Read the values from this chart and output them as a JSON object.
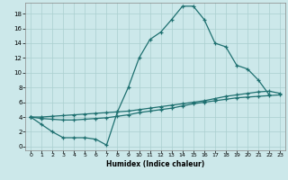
{
  "xlabel": "Humidex (Indice chaleur)",
  "bg_color": "#cce8ea",
  "line_color": "#1e7070",
  "grid_color": "#aacfcf",
  "xlim": [
    -0.5,
    23.5
  ],
  "ylim": [
    -0.5,
    19.5
  ],
  "xticks": [
    0,
    1,
    2,
    3,
    4,
    5,
    6,
    7,
    8,
    9,
    10,
    11,
    12,
    13,
    14,
    15,
    16,
    17,
    18,
    19,
    20,
    21,
    22,
    23
  ],
  "yticks": [
    0,
    2,
    4,
    6,
    8,
    10,
    12,
    14,
    16,
    18
  ],
  "curve1_x": [
    0,
    1,
    2,
    3,
    4,
    5,
    6,
    7,
    8,
    9,
    10,
    11,
    12,
    13,
    14,
    15,
    16,
    17,
    18,
    19,
    20,
    21,
    22
  ],
  "curve1_y": [
    4,
    3,
    2,
    1.2,
    1.2,
    1.2,
    1.0,
    0.2,
    4.7,
    8.0,
    12.0,
    14.5,
    15.5,
    17.2,
    19.0,
    19.0,
    17.2,
    14.0,
    13.5,
    11.0,
    10.5,
    9.0,
    7.0
  ],
  "curve2_x": [
    0,
    1,
    2,
    3,
    4,
    5,
    6,
    7,
    8,
    9,
    10,
    11,
    12,
    13,
    14,
    15,
    16,
    17,
    18,
    19,
    20,
    21,
    22,
    23
  ],
  "curve2_y": [
    4,
    4.0,
    4.1,
    4.2,
    4.3,
    4.4,
    4.5,
    4.6,
    4.7,
    4.8,
    5.0,
    5.2,
    5.4,
    5.6,
    5.8,
    6.0,
    6.2,
    6.5,
    6.8,
    7.0,
    7.2,
    7.4,
    7.5,
    7.2
  ],
  "curve3_x": [
    0,
    1,
    2,
    3,
    4,
    5,
    6,
    7,
    8,
    9,
    10,
    11,
    12,
    13,
    14,
    15,
    16,
    17,
    18,
    19,
    20,
    21,
    22,
    23
  ],
  "curve3_y": [
    4,
    3.8,
    3.7,
    3.6,
    3.6,
    3.7,
    3.8,
    3.9,
    4.1,
    4.3,
    4.6,
    4.8,
    5.0,
    5.2,
    5.5,
    5.8,
    6.0,
    6.2,
    6.4,
    6.6,
    6.7,
    6.8,
    6.9,
    7.0
  ]
}
